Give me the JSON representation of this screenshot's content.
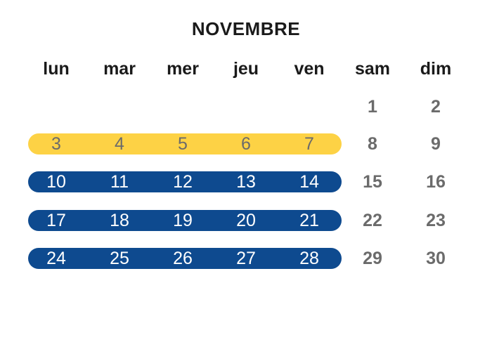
{
  "calendar": {
    "month": "NOVEMBRE",
    "day_headers": [
      "lun",
      "mar",
      "mer",
      "jeu",
      "ven",
      "sam",
      "dim"
    ],
    "weeks": [
      {
        "days": [
          "",
          "",
          "",
          "",
          "",
          "1",
          "2"
        ],
        "highlight": null
      },
      {
        "days": [
          "3",
          "4",
          "5",
          "6",
          "7",
          "8",
          "9"
        ],
        "highlight": "yellow"
      },
      {
        "days": [
          "10",
          "11",
          "12",
          "13",
          "14",
          "15",
          "16"
        ],
        "highlight": "blue"
      },
      {
        "days": [
          "17",
          "18",
          "19",
          "20",
          "21",
          "22",
          "23"
        ],
        "highlight": "blue"
      },
      {
        "days": [
          "24",
          "25",
          "26",
          "27",
          "28",
          "29",
          "30"
        ],
        "highlight": "blue"
      }
    ]
  },
  "colors": {
    "yellow_bar": "#FDD245",
    "yellow_text": "#6b6b6b",
    "blue_bar": "#0E4A8F",
    "blue_text": "#ffffff",
    "plain_text": "#6b6b6b",
    "heading_text": "#1a1a1a"
  }
}
